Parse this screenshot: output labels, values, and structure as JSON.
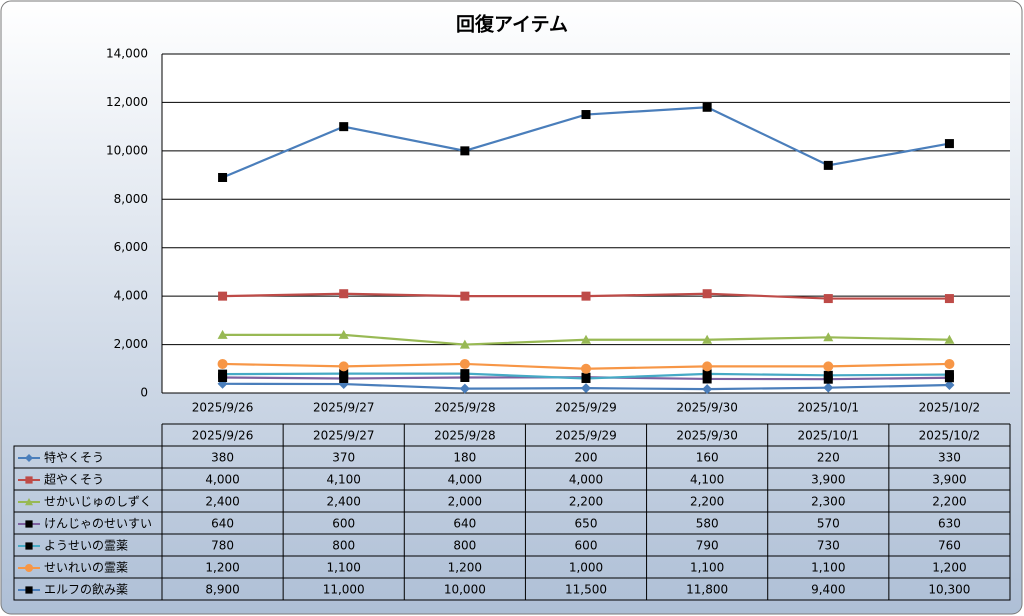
{
  "chart_data": {
    "type": "line",
    "title": "回復アイテム",
    "categories": [
      "2025/9/26",
      "2025/9/27",
      "2025/9/28",
      "2025/9/29",
      "2025/9/30",
      "2025/10/1",
      "2025/10/2"
    ],
    "ylim": [
      0,
      14000
    ],
    "yticks": [
      0,
      {
        "value": 2000,
        "label": "2,000"
      },
      {
        "value": 4000,
        "label": "4,000"
      },
      {
        "value": 6000,
        "label": "6,000"
      },
      {
        "value": 8000,
        "label": "8,000"
      },
      {
        "value": 10000,
        "label": "10,000"
      },
      {
        "value": 12000,
        "label": "12,000"
      },
      {
        "value": 14000,
        "label": "14,000"
      }
    ],
    "grid": true,
    "series": [
      {
        "name": "特やくそう",
        "color": "#4a7ebb",
        "marker": "diamond",
        "marker_color": "#4a7ebb",
        "values": [
          380,
          370,
          180,
          200,
          160,
          220,
          330
        ],
        "value_labels": [
          "380",
          "370",
          "180",
          "200",
          "160",
          "220",
          "330"
        ]
      },
      {
        "name": "超やくそう",
        "color": "#be4b48",
        "marker": "square",
        "marker_color": "#be4b48",
        "values": [
          4000,
          4100,
          4000,
          4000,
          4100,
          3900,
          3900
        ],
        "value_labels": [
          "4,000",
          "4,100",
          "4,000",
          "4,000",
          "4,100",
          "3,900",
          "3,900"
        ]
      },
      {
        "name": "せかいじゅのしずく",
        "color": "#98b954",
        "marker": "triangle",
        "marker_color": "#98b954",
        "values": [
          2400,
          2400,
          2000,
          2200,
          2200,
          2300,
          2200
        ],
        "value_labels": [
          "2,400",
          "2,400",
          "2,000",
          "2,200",
          "2,200",
          "2,300",
          "2,200"
        ]
      },
      {
        "name": "けんじゃのせいすい",
        "color": "#7d60a0",
        "marker": "square",
        "marker_color": "#000000",
        "values": [
          640,
          600,
          640,
          650,
          580,
          570,
          630
        ],
        "value_labels": [
          "640",
          "600",
          "640",
          "650",
          "580",
          "570",
          "630"
        ]
      },
      {
        "name": "ようせいの霊薬",
        "color": "#46aac5",
        "marker": "square",
        "marker_color": "#000000",
        "values": [
          780,
          800,
          800,
          600,
          790,
          730,
          760
        ],
        "value_labels": [
          "780",
          "800",
          "800",
          "600",
          "790",
          "730",
          "760"
        ]
      },
      {
        "name": "せいれいの霊薬",
        "color": "#f79646",
        "marker": "circle",
        "marker_color": "#f79646",
        "values": [
          1200,
          1100,
          1200,
          1000,
          1100,
          1100,
          1200
        ],
        "value_labels": [
          "1,200",
          "1,100",
          "1,200",
          "1,000",
          "1,100",
          "1,100",
          "1,200"
        ]
      },
      {
        "name": "エルフの飲み薬",
        "color": "#4a7ebb",
        "marker": "square",
        "marker_color": "#000000",
        "values": [
          8900,
          11000,
          10000,
          11500,
          11800,
          9400,
          10300
        ],
        "value_labels": [
          "8,900",
          "11,000",
          "10,000",
          "11,500",
          "11,800",
          "9,400",
          "10,300"
        ]
      }
    ]
  }
}
